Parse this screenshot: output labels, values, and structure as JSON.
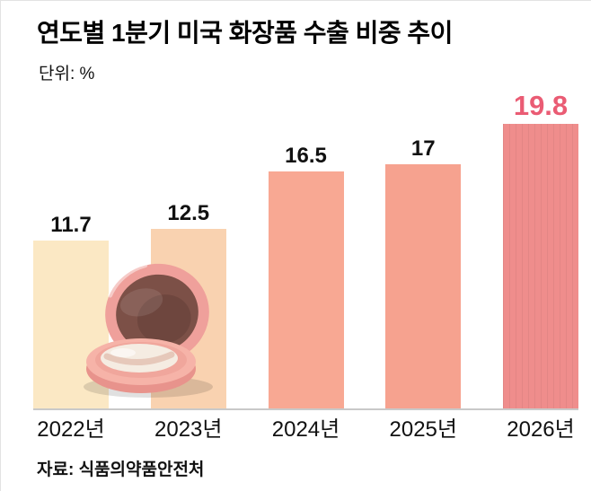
{
  "title": "연도별 1분기 미국 화장품 수출 비중 추이",
  "unit_label": "단위: %",
  "source": "자료: 식품의약품안전처",
  "chart_data": {
    "type": "bar",
    "title": "연도별 1분기 미국 화장품 수출 비중 추이",
    "categories": [
      "2022년",
      "2023년",
      "2024년",
      "2025년",
      "2026년"
    ],
    "values": [
      11.7,
      12.5,
      16.5,
      17,
      19.8
    ],
    "value_labels": [
      "11.7",
      "12.5",
      "16.5",
      "17",
      "19.8"
    ],
    "xlabel": "",
    "ylabel": "%",
    "ylim": [
      0,
      22
    ],
    "grid": false,
    "legend": "none",
    "bar_colors": [
      "#FBE8C4",
      "#F9D2B0",
      "#F8A893",
      "#F6A28F",
      "#EF8D8C"
    ],
    "value_label_colors": [
      "#111111",
      "#111111",
      "#111111",
      "#111111",
      "#EA5C74"
    ],
    "highlight_color": "#EA5C74",
    "axis_color": "#c9c9c9",
    "decoration": "cushion-compact-illustration"
  }
}
